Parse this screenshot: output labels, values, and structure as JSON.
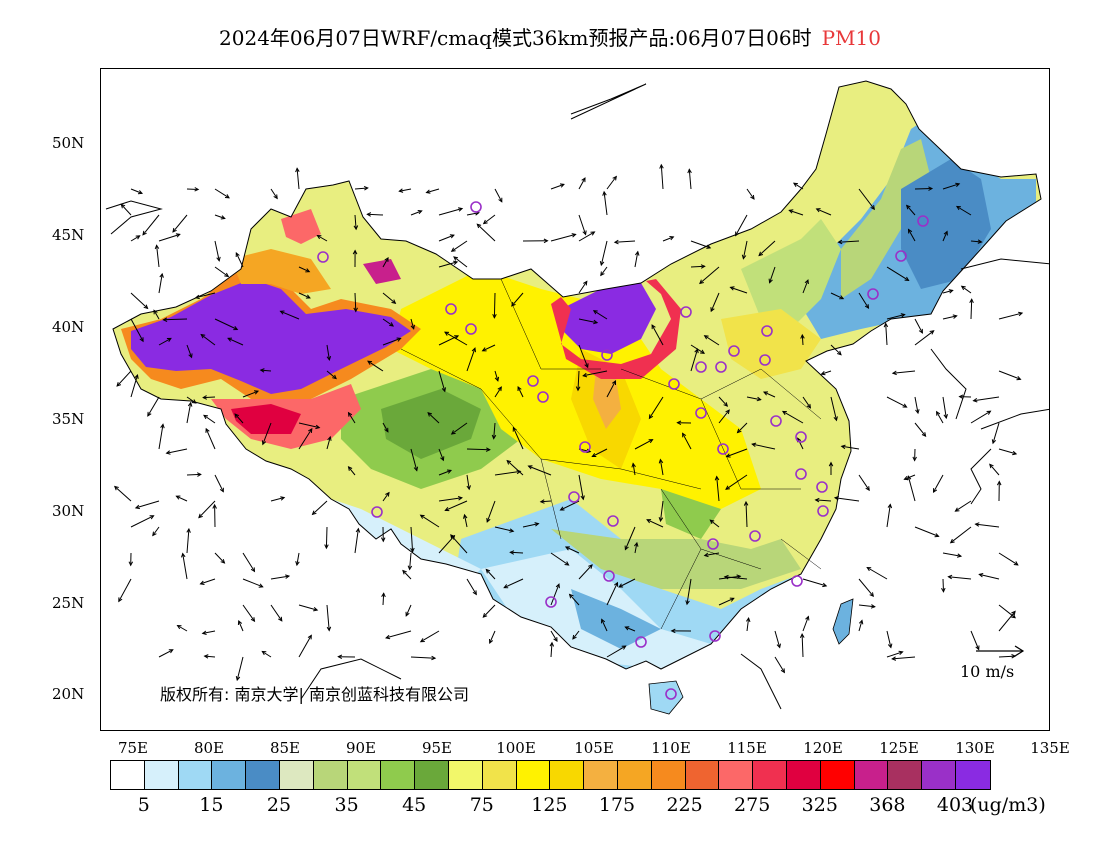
{
  "title": {
    "main": "2024年06月07日WRF/cmaq模式36km预报产品:06月07日06时",
    "pollutant": "PM10"
  },
  "axes": {
    "lat_ticks": [
      "50N",
      "45N",
      "40N",
      "35N",
      "30N",
      "25N",
      "20N"
    ],
    "lon_ticks": [
      "75E",
      "80E",
      "85E",
      "90E",
      "95E",
      "100E",
      "105E",
      "110E",
      "115E",
      "120E",
      "125E",
      "130E",
      "135E"
    ]
  },
  "copyright": "版权所有: 南京大学| 南京创蓝科技有限公司",
  "wind_scale": "10 m/s",
  "colorbar": {
    "colors": [
      "#ffffff",
      "#d6f0fb",
      "#9fd9f4",
      "#6cb2df",
      "#4a8cc5",
      "#dde8c0",
      "#b8d679",
      "#c1e07a",
      "#8fcb4d",
      "#6aa83a",
      "#f2f76a",
      "#f1e34a",
      "#fff200",
      "#f8d800",
      "#f4b040",
      "#f5a623",
      "#f68a1e",
      "#ef6430",
      "#fc6868",
      "#f03050",
      "#e00040",
      "#ff0000",
      "#c8208c",
      "#a83060",
      "#9a30c8",
      "#8a2be2"
    ],
    "labels": [
      "5",
      "15",
      "25",
      "35",
      "45",
      "75",
      "125",
      "175",
      "225",
      "275",
      "325",
      "368",
      "403"
    ],
    "unit": "(ug/m3)"
  }
}
